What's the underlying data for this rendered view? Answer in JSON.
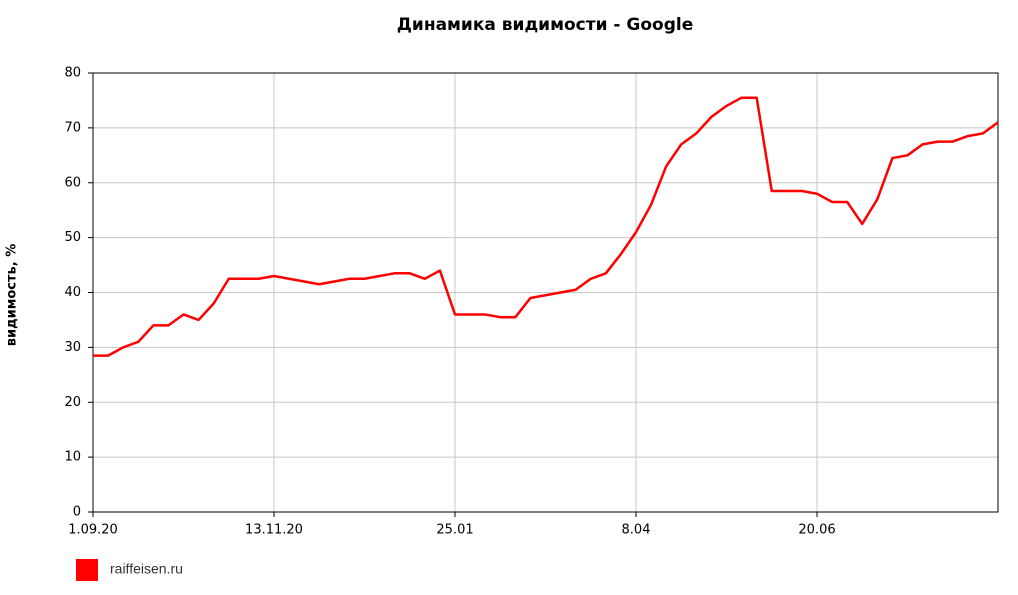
{
  "chart_data": {
    "type": "line",
    "title": "Динамика видимости - Google",
    "y_label": "видимость, %",
    "categories": [
      "1.09.20",
      null,
      null,
      null,
      null,
      null,
      null,
      null,
      null,
      null,
      null,
      null,
      "13.11.20",
      null,
      null,
      null,
      null,
      null,
      null,
      null,
      null,
      null,
      null,
      null,
      "25.01",
      null,
      null,
      null,
      null,
      null,
      null,
      null,
      null,
      null,
      null,
      null,
      "8.04",
      null,
      null,
      null,
      null,
      null,
      null,
      null,
      null,
      null,
      null,
      null,
      "20.06",
      null,
      null,
      null,
      null,
      null,
      null,
      null,
      null,
      null,
      null,
      null,
      null
    ],
    "series": [
      {
        "name": "raiffeisen.ru",
        "color": "#ff0000",
        "values": [
          28.5,
          28.5,
          30,
          31,
          34,
          34,
          36,
          35,
          38,
          42.5,
          42.5,
          42.5,
          43,
          42.5,
          42,
          41.5,
          42,
          42.5,
          42.5,
          43,
          43.5,
          43.5,
          42.5,
          44,
          36,
          36,
          36,
          35.5,
          35.5,
          39,
          39.5,
          40,
          40.5,
          42.5,
          43.5,
          47,
          51,
          56,
          63,
          67,
          69,
          72,
          74,
          75.5,
          75.5,
          58.5,
          58.5,
          58.5,
          58,
          56.5,
          56.5,
          52.5,
          57,
          64.5,
          65,
          67,
          67.5,
          67.5,
          68.5,
          69,
          71
        ]
      }
    ],
    "ylim": [
      0,
      80
    ],
    "yticks": [
      0,
      10,
      20,
      30,
      40,
      50,
      60,
      70,
      80
    ],
    "grid": true
  }
}
